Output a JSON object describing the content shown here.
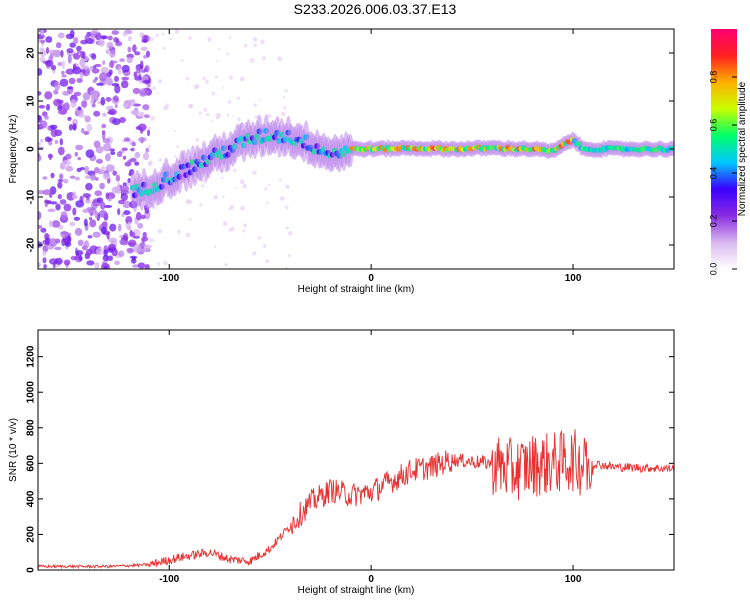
{
  "title": "S233.2026.006.03.37.E13",
  "chart_data": [
    {
      "type": "heatmap",
      "xlabel": "Height of straight line (km)",
      "ylabel": "Frequency (Hz)",
      "xlim": [
        -165,
        150
      ],
      "ylim": [
        -25,
        25
      ],
      "xticks": [
        -100,
        0,
        100
      ],
      "yticks": [
        -20,
        -10,
        0,
        10,
        20
      ],
      "colorbar": {
        "label": "Normalized spectral amplitude",
        "range": [
          0,
          1
        ],
        "ticks": [
          "0.0",
          "0.2",
          "0.4",
          "0.6",
          "0.8"
        ],
        "colors": [
          "#ffffff",
          "#d9b8f0",
          "#8a2be2",
          "#3a00ff",
          "#00c8ff",
          "#00ff6a",
          "#c8ff00",
          "#ffb000",
          "#ff2020",
          "#ff0070"
        ]
      },
      "ridge": {
        "x": [
          -115,
          -100,
          -90,
          -80,
          -70,
          -60,
          -50,
          -40,
          -30,
          -20,
          -10,
          0,
          20,
          40,
          60,
          80,
          90,
          100,
          105,
          120,
          150
        ],
        "y": [
          -9,
          -6,
          -4,
          -2,
          0,
          2,
          3,
          2.5,
          1,
          -1,
          0,
          0,
          0.2,
          0,
          0.2,
          0,
          -0.5,
          2,
          0,
          0,
          0
        ]
      }
    },
    {
      "type": "line",
      "xlabel": "Height of straight line (km)",
      "ylabel": "SNR (10 * v/v)",
      "xlim": [
        -165,
        150
      ],
      "ylim": [
        0,
        1350
      ],
      "xticks": [
        -100,
        0,
        100
      ],
      "yticks": [
        0,
        200,
        400,
        600,
        800,
        1000,
        1200
      ],
      "color": "#e8302e",
      "envelope": {
        "x": [
          -165,
          -130,
          -110,
          -95,
          -80,
          -70,
          -60,
          -50,
          -40,
          -30,
          -20,
          -10,
          0,
          10,
          20,
          30,
          40,
          50,
          60,
          70,
          80,
          90,
          100,
          105,
          110,
          120,
          150
        ],
        "y": [
          20,
          20,
          30,
          70,
          100,
          60,
          50,
          120,
          250,
          380,
          450,
          420,
          440,
          500,
          560,
          580,
          620,
          610,
          600,
          560,
          590,
          600,
          620,
          580,
          600,
          580,
          570
        ]
      }
    }
  ]
}
